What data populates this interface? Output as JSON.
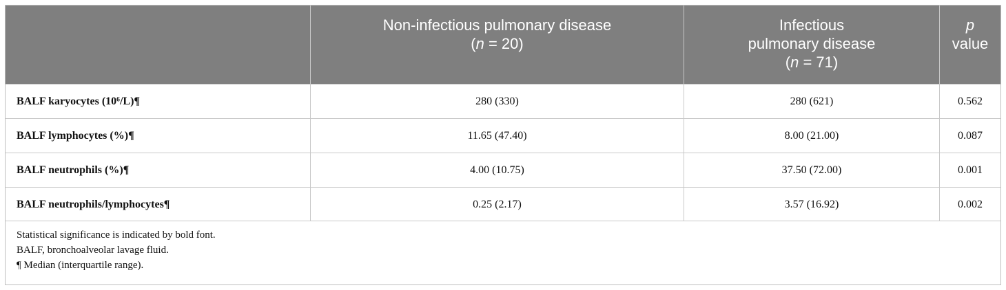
{
  "header": {
    "col2": [
      "Non-infectious pulmonary disease",
      "(",
      "n",
      " = 20)"
    ],
    "col3": [
      "Infectious",
      "pulmonary disease",
      "(",
      "n",
      " = 71)"
    ],
    "col4": [
      "p",
      "value"
    ]
  },
  "table": {
    "rows": [
      [
        "BALF karyocytes (10⁶/L)¶",
        "280 (330)",
        "280 (621)",
        "0.562"
      ],
      [
        "BALF lymphocytes (%)¶",
        "11.65 (47.40)",
        "8.00 (21.00)",
        "0.087"
      ],
      [
        "BALF neutrophils (%)¶",
        "4.00 (10.75)",
        "37.50 (72.00)",
        "0.001"
      ],
      [
        "BALF neutrophils/lymphocytes¶",
        "0.25 (2.17)",
        "3.57 (16.92)",
        "0.002"
      ]
    ]
  },
  "footnotes": [
    "Statistical significance is indicated by bold font.",
    "BALF, bronchoalveolar lavage fluid.",
    "¶ Median (interquartile range)."
  ]
}
